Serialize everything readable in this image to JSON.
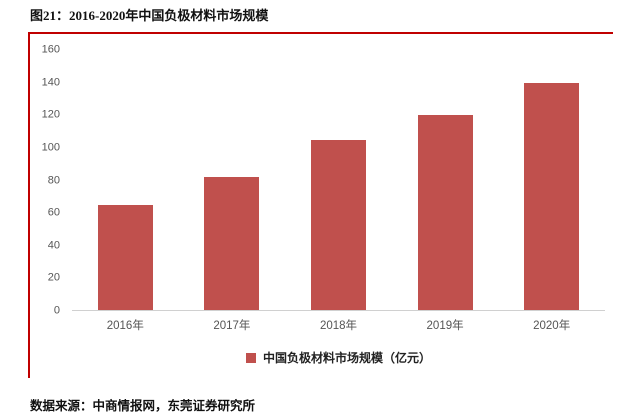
{
  "figure": {
    "title": "图21：2016-2020年中国负极材料市场规模",
    "source": "数据来源：中商情报网，东莞证券研究所"
  },
  "colors": {
    "accent": "#c00000",
    "bar": "#c0504d",
    "axis_text": "#555555"
  },
  "chart_data": {
    "type": "bar",
    "title": "图21：2016-2020年中国负极材料市场规模",
    "categories": [
      "2016年",
      "2017年",
      "2018年",
      "2019年",
      "2020年"
    ],
    "values": [
      65,
      82,
      105,
      120,
      140
    ],
    "series_name": "中国负极材料市场规模（亿元）",
    "legend": [
      "中国负极材料市场规模（亿元）"
    ],
    "legend_position": "bottom",
    "xlabel": "",
    "ylabel": "",
    "ylim": [
      0,
      160
    ],
    "yticks": [
      0,
      20,
      40,
      60,
      80,
      100,
      120,
      140,
      160
    ],
    "grid": false,
    "bar_color": "#c0504d"
  }
}
